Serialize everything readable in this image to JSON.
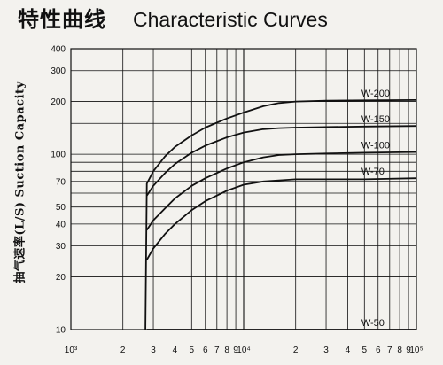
{
  "title": {
    "cn": "特性曲线",
    "en": "Characteristic Curves"
  },
  "ylabel": "抽气速率(L/S) Suction Capacity",
  "chart_data": {
    "type": "line",
    "title": "特性曲线 Characteristic Curves",
    "ylabel": "抽气速率(L/S) Suction Capacity",
    "xlabel": "",
    "xscale": "log",
    "yscale": "log",
    "xlim": [
      1000,
      100000
    ],
    "ylim": [
      10,
      400
    ],
    "grid": true,
    "legend": "inline labels at right end of each curve",
    "x_tick_labels": [
      "10³",
      "2",
      "3",
      "4",
      "5",
      "6",
      "7",
      "8",
      "9",
      "10⁴",
      "2",
      "3",
      "4",
      "5",
      "6",
      "7",
      "8",
      "9",
      "10⁵"
    ],
    "y_tick_labels": [
      "10",
      "20",
      "30",
      "40",
      "50",
      "70",
      "100",
      "200",
      "300",
      "400"
    ],
    "series": [
      {
        "name": "W-200",
        "x": [
          2700,
          2750,
          3000,
          3500,
          4000,
          5000,
          6000,
          8000,
          10000,
          13000,
          16000,
          20000,
          30000,
          50000,
          100000
        ],
        "y": [
          10,
          68,
          80,
          97,
          110,
          128,
          142,
          160,
          173,
          188,
          196,
          200,
          202,
          203,
          204
        ]
      },
      {
        "name": "W-150",
        "x": [
          2750,
          3000,
          3500,
          4000,
          5000,
          6000,
          8000,
          10000,
          13000,
          16000,
          20000,
          30000,
          50000,
          100000
        ],
        "y": [
          58,
          66,
          78,
          88,
          102,
          112,
          125,
          133,
          139,
          141,
          142,
          143,
          144,
          145
        ]
      },
      {
        "name": "W-100",
        "x": [
          2750,
          3000,
          3500,
          4000,
          5000,
          6000,
          8000,
          10000,
          13000,
          16000,
          20000,
          30000,
          50000,
          100000
        ],
        "y": [
          37,
          42,
          49,
          56,
          66,
          73,
          83,
          90,
          96,
          99,
          100,
          101,
          102,
          103
        ]
      },
      {
        "name": "W-70",
        "x": [
          2750,
          3000,
          3500,
          4000,
          5000,
          6000,
          8000,
          10000,
          13000,
          16000,
          20000,
          30000,
          50000,
          100000
        ],
        "y": [
          25,
          29,
          35,
          40,
          48,
          54,
          62,
          67,
          70,
          71,
          72,
          72,
          72,
          73
        ]
      },
      {
        "name": "W-50",
        "x": [
          2750,
          3000,
          3500,
          4000,
          5000,
          6000,
          8000,
          10000,
          13000,
          16000,
          20000,
          30000,
          50000,
          100000
        ],
        "y": [
          10,
          10,
          10,
          10,
          10,
          10,
          10,
          10,
          10,
          10,
          10,
          10,
          10,
          10
        ]
      }
    ]
  }
}
